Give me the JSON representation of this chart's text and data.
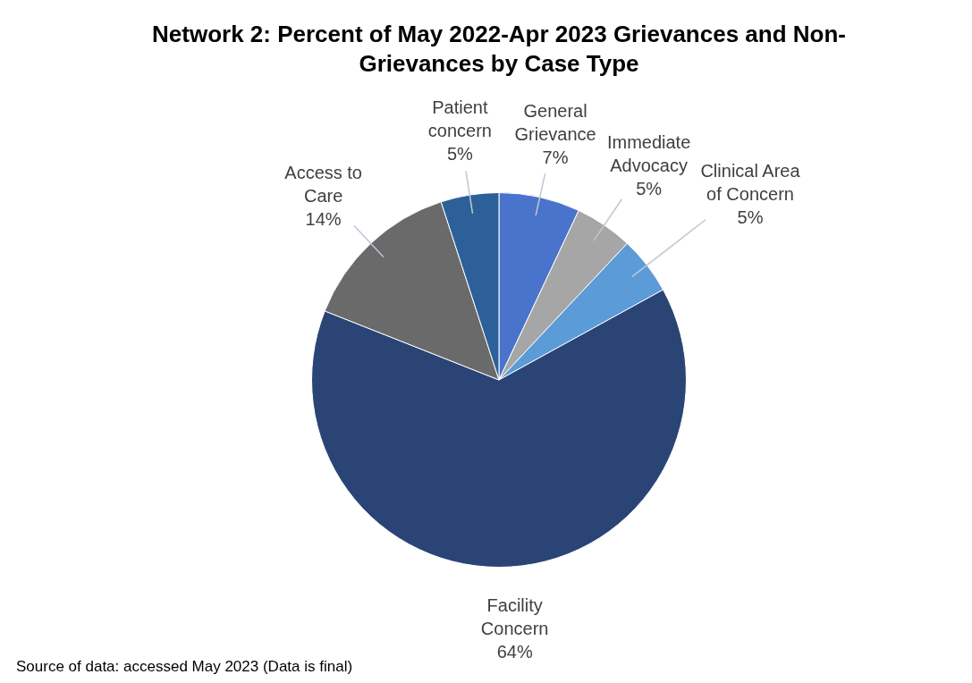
{
  "chart_data": {
    "type": "pie",
    "title": "Network 2:  Percent of May 2022-Apr 2023 Grievances and Non-Grievances by Case Type",
    "categories": [
      "General Grievance",
      "Immediate Advocacy",
      "Clinical Area of Concern",
      "Facility Concern",
      "Access to Care",
      "Patient concern"
    ],
    "values": [
      7,
      5,
      5,
      64,
      14,
      5
    ],
    "colors": [
      "#4a73cc",
      "#a6a6a6",
      "#5b9bd8",
      "#2b4476",
      "#6a6a6a",
      "#2d6098"
    ],
    "value_labels": [
      "7%",
      "5%",
      "5%",
      "64%",
      "14%",
      "5%"
    ],
    "legend": false,
    "annotations": [
      "Source of data:  accessed May 2023 (Data is final)"
    ]
  }
}
